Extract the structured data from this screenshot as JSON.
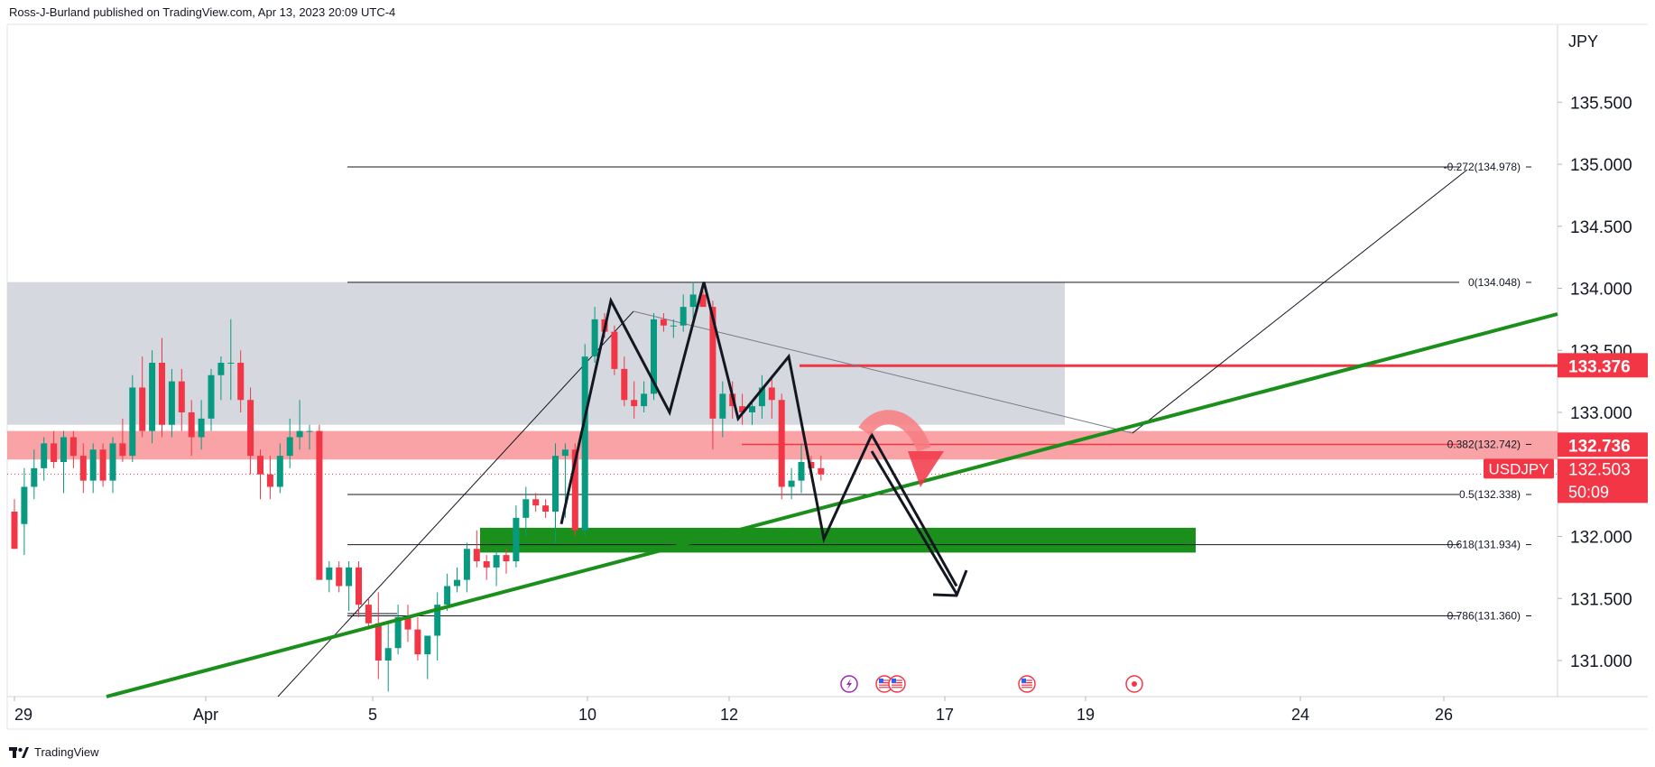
{
  "header": {
    "publisher": "Ross-J-Burland published on TradingView.com, Apr 13, 2023 20:09 UTC-4"
  },
  "footer": {
    "brand": "TradingView"
  },
  "chart_data": {
    "type": "candlestick",
    "symbol": "USDJPY",
    "currency_label": "JPY",
    "y_axis": {
      "ticks": [
        "135.500",
        "135.000",
        "134.500",
        "134.000",
        "133.500",
        "133.000",
        "132.500",
        "132.000",
        "131.500",
        "131.000"
      ]
    },
    "x_axis": {
      "ticks": [
        "29",
        "Apr",
        "5",
        "10",
        "12",
        "17",
        "19",
        "24",
        "26"
      ]
    },
    "price_badges": [
      {
        "label": "133.376",
        "value": 133.376,
        "color": "#f23645"
      },
      {
        "label": "132.736",
        "value": 132.736,
        "color": "#f23645"
      },
      {
        "label": "132.503",
        "value": 132.503,
        "color": "#f23645",
        "symbol": "USDJPY",
        "countdown": "50:09"
      }
    ],
    "fib_levels": [
      {
        "ratio": "-0.272",
        "label": "-0.272(134.978)",
        "value": 134.978
      },
      {
        "ratio": "0",
        "label": "0(134.048)",
        "value": 134.048
      },
      {
        "ratio": "0.382",
        "label": "0.382(132.742)",
        "value": 132.742
      },
      {
        "ratio": "0.5",
        "label": "0.5(132.338)",
        "value": 132.338
      },
      {
        "ratio": "0.618",
        "label": "0.618(131.934)",
        "value": 131.934
      },
      {
        "ratio": "0.786",
        "label": "0.786(131.360)",
        "value": 131.36
      }
    ],
    "zones": [
      {
        "kind": "range-box",
        "color": "#d1d4dc",
        "from": 132.9,
        "to": 134.05
      },
      {
        "kind": "resistance-band",
        "color": "#f77c80",
        "from": 132.62,
        "to": 132.85
      },
      {
        "kind": "support-zone",
        "color": "#1b8f1b",
        "from": 131.87,
        "to": 132.07
      }
    ],
    "horizontal_lines": [
      {
        "value": 133.376,
        "color": "#f23645"
      }
    ],
    "candles": [
      {
        "o": 132.2,
        "h": 132.3,
        "l": 131.9,
        "c": 131.9
      },
      {
        "o": 132.1,
        "h": 132.55,
        "l": 131.85,
        "c": 132.4
      },
      {
        "o": 132.4,
        "h": 132.7,
        "l": 132.3,
        "c": 132.55
      },
      {
        "o": 132.55,
        "h": 132.8,
        "l": 132.45,
        "c": 132.75
      },
      {
        "o": 132.75,
        "h": 132.85,
        "l": 132.55,
        "c": 132.6
      },
      {
        "o": 132.6,
        "h": 132.85,
        "l": 132.35,
        "c": 132.8
      },
      {
        "o": 132.8,
        "h": 132.85,
        "l": 132.55,
        "c": 132.65
      },
      {
        "o": 132.65,
        "h": 132.75,
        "l": 132.35,
        "c": 132.45
      },
      {
        "o": 132.45,
        "h": 132.75,
        "l": 132.35,
        "c": 132.7
      },
      {
        "o": 132.7,
        "h": 132.75,
        "l": 132.4,
        "c": 132.45
      },
      {
        "o": 132.45,
        "h": 132.8,
        "l": 132.35,
        "c": 132.75
      },
      {
        "o": 132.75,
        "h": 132.95,
        "l": 132.6,
        "c": 132.65
      },
      {
        "o": 132.65,
        "h": 133.3,
        "l": 132.6,
        "c": 133.2
      },
      {
        "o": 133.2,
        "h": 133.45,
        "l": 132.8,
        "c": 132.85
      },
      {
        "o": 132.85,
        "h": 133.5,
        "l": 132.75,
        "c": 133.4
      },
      {
        "o": 133.4,
        "h": 133.6,
        "l": 132.8,
        "c": 132.9
      },
      {
        "o": 132.9,
        "h": 133.35,
        "l": 132.8,
        "c": 133.25
      },
      {
        "o": 133.25,
        "h": 133.35,
        "l": 132.85,
        "c": 133.0
      },
      {
        "o": 133.0,
        "h": 133.1,
        "l": 132.65,
        "c": 132.8
      },
      {
        "o": 132.8,
        "h": 133.1,
        "l": 132.7,
        "c": 132.95
      },
      {
        "o": 132.95,
        "h": 133.35,
        "l": 132.85,
        "c": 133.3
      },
      {
        "o": 133.3,
        "h": 133.45,
        "l": 133.1,
        "c": 133.4
      },
      {
        "o": 133.4,
        "h": 133.75,
        "l": 133.1,
        "c": 133.4
      },
      {
        "o": 133.4,
        "h": 133.5,
        "l": 133.0,
        "c": 133.1
      },
      {
        "o": 133.1,
        "h": 133.2,
        "l": 132.5,
        "c": 132.65
      },
      {
        "o": 132.65,
        "h": 132.7,
        "l": 132.3,
        "c": 132.5
      },
      {
        "o": 132.5,
        "h": 132.65,
        "l": 132.3,
        "c": 132.4
      },
      {
        "o": 132.4,
        "h": 132.75,
        "l": 132.35,
        "c": 132.65
      },
      {
        "o": 132.65,
        "h": 132.95,
        "l": 132.55,
        "c": 132.8
      },
      {
        "o": 132.8,
        "h": 133.1,
        "l": 132.7,
        "c": 132.85
      },
      {
        "o": 132.85,
        "h": 132.9,
        "l": 132.7,
        "c": 132.85
      },
      {
        "o": 132.85,
        "h": 132.9,
        "l": 131.65,
        "c": 131.65
      },
      {
        "o": 131.65,
        "h": 131.8,
        "l": 131.55,
        "c": 131.75
      },
      {
        "o": 131.75,
        "h": 131.8,
        "l": 131.55,
        "c": 131.6
      },
      {
        "o": 131.6,
        "h": 131.8,
        "l": 131.4,
        "c": 131.75
      },
      {
        "o": 131.75,
        "h": 131.8,
        "l": 131.35,
        "c": 131.45
      },
      {
        "o": 131.45,
        "h": 131.5,
        "l": 131.25,
        "c": 131.3
      },
      {
        "o": 131.3,
        "h": 131.55,
        "l": 130.85,
        "c": 131.0
      },
      {
        "o": 131.0,
        "h": 131.3,
        "l": 130.75,
        "c": 131.1
      },
      {
        "o": 131.1,
        "h": 131.45,
        "l": 131.05,
        "c": 131.35
      },
      {
        "o": 131.35,
        "h": 131.45,
        "l": 131.15,
        "c": 131.25
      },
      {
        "o": 131.25,
        "h": 131.35,
        "l": 131.0,
        "c": 131.05
      },
      {
        "o": 131.05,
        "h": 131.2,
        "l": 130.85,
        "c": 131.2
      },
      {
        "o": 131.2,
        "h": 131.55,
        "l": 131.0,
        "c": 131.45
      },
      {
        "o": 131.45,
        "h": 131.7,
        "l": 131.4,
        "c": 131.6
      },
      {
        "o": 131.6,
        "h": 131.75,
        "l": 131.55,
        "c": 131.65
      },
      {
        "o": 131.65,
        "h": 131.95,
        "l": 131.55,
        "c": 131.9
      },
      {
        "o": 131.9,
        "h": 132.05,
        "l": 131.75,
        "c": 131.8
      },
      {
        "o": 131.8,
        "h": 131.85,
        "l": 131.65,
        "c": 131.75
      },
      {
        "o": 131.75,
        "h": 131.9,
        "l": 131.6,
        "c": 131.85
      },
      {
        "o": 131.85,
        "h": 131.9,
        "l": 131.7,
        "c": 131.8
      },
      {
        "o": 131.8,
        "h": 132.25,
        "l": 131.75,
        "c": 132.15
      },
      {
        "o": 132.15,
        "h": 132.4,
        "l": 132.0,
        "c": 132.3
      },
      {
        "o": 132.3,
        "h": 132.35,
        "l": 132.2,
        "c": 132.25
      },
      {
        "o": 132.25,
        "h": 132.3,
        "l": 132.15,
        "c": 132.2
      },
      {
        "o": 132.2,
        "h": 132.75,
        "l": 131.95,
        "c": 132.65
      },
      {
        "o": 132.65,
        "h": 132.75,
        "l": 132.15,
        "c": 132.7
      },
      {
        "o": 132.7,
        "h": 132.75,
        "l": 132.0,
        "c": 132.05
      },
      {
        "o": 132.05,
        "h": 133.55,
        "l": 132.0,
        "c": 133.45
      },
      {
        "o": 133.45,
        "h": 133.85,
        "l": 133.4,
        "c": 133.75
      },
      {
        "o": 133.75,
        "h": 133.8,
        "l": 133.6,
        "c": 133.65
      },
      {
        "o": 133.65,
        "h": 133.7,
        "l": 133.3,
        "c": 133.35
      },
      {
        "o": 133.35,
        "h": 133.45,
        "l": 133.05,
        "c": 133.1
      },
      {
        "o": 133.1,
        "h": 133.25,
        "l": 132.95,
        "c": 133.05
      },
      {
        "o": 133.05,
        "h": 133.25,
        "l": 133.0,
        "c": 133.15
      },
      {
        "o": 133.15,
        "h": 133.8,
        "l": 133.1,
        "c": 133.75
      },
      {
        "o": 133.75,
        "h": 133.8,
        "l": 133.65,
        "c": 133.7
      },
      {
        "o": 133.7,
        "h": 133.75,
        "l": 133.6,
        "c": 133.7
      },
      {
        "o": 133.7,
        "h": 133.95,
        "l": 133.65,
        "c": 133.85
      },
      {
        "o": 133.85,
        "h": 134.05,
        "l": 133.75,
        "c": 133.95
      },
      {
        "o": 133.95,
        "h": 133.98,
        "l": 133.85,
        "c": 133.85
      },
      {
        "o": 133.85,
        "h": 133.9,
        "l": 132.7,
        "c": 132.95
      },
      {
        "o": 132.95,
        "h": 133.25,
        "l": 132.8,
        "c": 133.15
      },
      {
        "o": 133.15,
        "h": 133.25,
        "l": 132.95,
        "c": 133.05
      },
      {
        "o": 133.05,
        "h": 133.15,
        "l": 132.9,
        "c": 133.0
      },
      {
        "o": 133.0,
        "h": 133.1,
        "l": 132.9,
        "c": 133.05
      },
      {
        "o": 133.05,
        "h": 133.3,
        "l": 132.95,
        "c": 133.2
      },
      {
        "o": 133.2,
        "h": 133.3,
        "l": 132.95,
        "c": 133.1
      },
      {
        "o": 133.1,
        "h": 133.15,
        "l": 132.3,
        "c": 132.4
      },
      {
        "o": 132.4,
        "h": 132.55,
        "l": 132.3,
        "c": 132.45
      },
      {
        "o": 132.45,
        "h": 132.75,
        "l": 132.35,
        "c": 132.6
      },
      {
        "o": 132.6,
        "h": 132.65,
        "l": 132.5,
        "c": 132.55
      },
      {
        "o": 132.55,
        "h": 132.65,
        "l": 132.45,
        "c": 132.5
      }
    ],
    "pattern": {
      "zigzag": [
        {
          "x": "Apr 9",
          "y": 132.1
        },
        {
          "x": "Apr 10",
          "y": 133.9
        },
        {
          "x": "Apr 11",
          "y": 133.0
        },
        {
          "x": "Apr 11",
          "y": 134.05
        },
        {
          "x": "Apr 12",
          "y": 132.95
        },
        {
          "x": "Apr 13",
          "y": 133.45
        },
        {
          "x": "Apr 14",
          "y": 131.98
        },
        {
          "x": "Apr 15",
          "y": 132.82
        },
        {
          "x": "Apr 16",
          "y": 131.6
        }
      ]
    },
    "event_markers": [
      "lightning-event-icon",
      "us-flag-event-icon",
      "us-flag-event-icon",
      "us-flag-event-icon",
      "dot-event-icon"
    ]
  }
}
